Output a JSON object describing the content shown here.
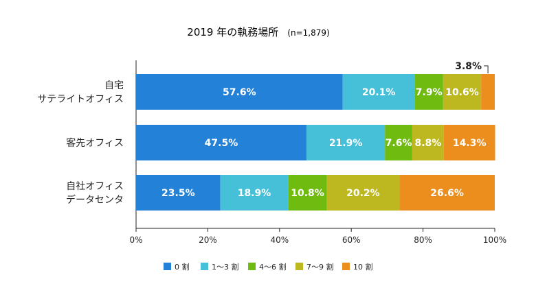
{
  "chart_data": {
    "type": "bar",
    "orientation": "horizontal",
    "stacked": true,
    "title": "2019 年の執務場所",
    "subtitle": "(n=1,879)",
    "categories": [
      [
        "自宅",
        "サテライトオフィス"
      ],
      [
        "客先オフィス"
      ],
      [
        "自社オフィス",
        "データセンタ"
      ]
    ],
    "series": [
      {
        "name": "0 割",
        "color": "#2382d8",
        "values": [
          57.6,
          47.5,
          23.5
        ],
        "labels": [
          "57.6%",
          "47.5%",
          "23.5%"
        ]
      },
      {
        "name": "1～3 割",
        "color": "#45c0d8",
        "values": [
          20.1,
          21.9,
          18.9
        ],
        "labels": [
          "20.1%",
          "21.9%",
          "18.9%"
        ]
      },
      {
        "name": "4～6 割",
        "color": "#6fbb0f",
        "values": [
          7.9,
          7.6,
          10.8
        ],
        "labels": [
          "7.9%",
          "7.6%",
          "10.8%"
        ]
      },
      {
        "name": "7～9 割",
        "color": "#bdb820",
        "values": [
          10.6,
          8.8,
          20.2
        ],
        "labels": [
          "10.6%",
          "8.8%",
          "20.2%"
        ]
      },
      {
        "name": "10 割",
        "color": "#ec8e1e",
        "values": [
          3.8,
          14.3,
          26.6
        ],
        "labels": [
          "",
          "14.3%",
          "26.6%"
        ]
      }
    ],
    "callout": "3.8%",
    "x_ticks": [
      "0%",
      "20%",
      "40%",
      "60%",
      "80%",
      "100%"
    ],
    "xlim": [
      0,
      100
    ],
    "grid": false,
    "legend_position": "bottom"
  }
}
